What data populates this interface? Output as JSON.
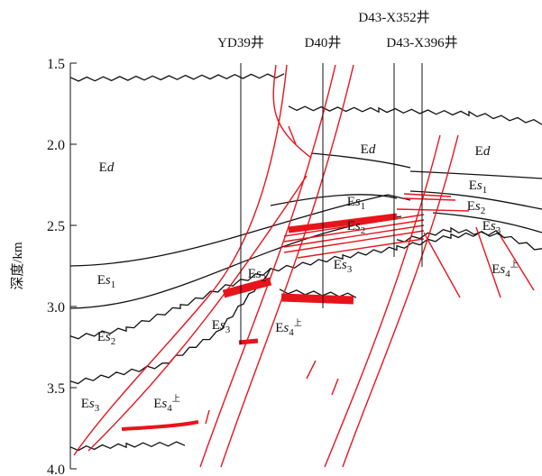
{
  "axis": {
    "label": "深度/km",
    "ylim": [
      1.5,
      4.0
    ],
    "yticks": [
      1.5,
      {
        "value": 2,
        "label": "2.0"
      },
      2.5,
      {
        "value": 3,
        "label": "3.0"
      },
      3.5,
      {
        "value": 4,
        "label": "4.0"
      }
    ]
  },
  "wells": [
    {
      "label": "YD39井"
    },
    {
      "label": "D40井"
    },
    {
      "label": "D43-X352井"
    },
    {
      "label": "D43-X396井"
    }
  ],
  "formations": [
    {
      "base": "E",
      "it": "d"
    },
    {
      "base": "E",
      "it": "d"
    },
    {
      "base": "E",
      "it": "d"
    },
    {
      "base": "E",
      "it": "s",
      "sub": "1"
    },
    {
      "base": "E",
      "it": "s",
      "sub": "2"
    },
    {
      "base": "E",
      "it": "s",
      "sub": "3"
    },
    {
      "base": "E",
      "it": "s",
      "sub": "4",
      "sup": "上"
    },
    {
      "base": "E",
      "it": "s",
      "sub": "2"
    },
    {
      "base": "E",
      "it": "s",
      "sub": "3"
    },
    {
      "base": "E",
      "it": "s",
      "sub": "4",
      "sup": "上"
    },
    {
      "base": "E",
      "it": "s",
      "sub": "1"
    },
    {
      "base": "E",
      "it": "s",
      "sub": "2"
    },
    {
      "base": "E",
      "it": "s",
      "sub": "3"
    },
    {
      "base": "E",
      "it": "s",
      "sub": "1"
    },
    {
      "base": "E",
      "it": "s",
      "sub": "2"
    },
    {
      "base": "E",
      "it": "s",
      "sub": "3"
    },
    {
      "base": "E",
      "it": "s",
      "sub": "4",
      "sup": "上"
    }
  ]
}
